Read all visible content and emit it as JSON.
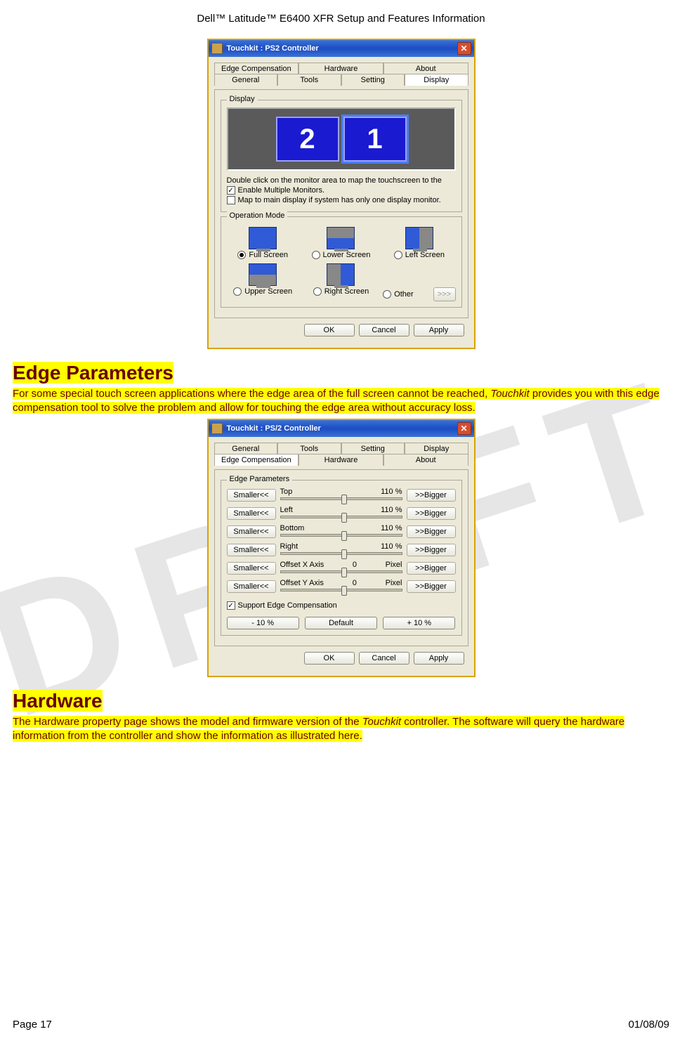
{
  "doc": {
    "header": "Dell™ Latitude™ E6400 XFR Setup and Features Information",
    "watermark": "DRAFT",
    "page_label": "Page 17",
    "date": "01/08/09"
  },
  "dialog1": {
    "title": "Touchkit : PS2 Controller",
    "tabs_row1": [
      "Edge Compensation",
      "Hardware",
      "About"
    ],
    "tabs_row2": [
      "General",
      "Tools",
      "Setting",
      "Display"
    ],
    "active_tab": "Display",
    "group_display": "Display",
    "monitors": [
      "2",
      "1"
    ],
    "hint": "Double click on the monitor area to map the touchscreen to the",
    "cb_multi": "Enable Multiple Monitors.",
    "cb_main": "Map to main display if system has only one display monitor.",
    "group_op": "Operation Mode",
    "ops": [
      {
        "label": "Full Screen",
        "checked": true,
        "variant": ""
      },
      {
        "label": "Lower Screen",
        "checked": false,
        "variant": "lower"
      },
      {
        "label": "Left Screen",
        "checked": false,
        "variant": "left"
      },
      {
        "label": "Upper Screen",
        "checked": false,
        "variant": "upper"
      },
      {
        "label": "Right Screen",
        "checked": false,
        "variant": "right"
      },
      {
        "label": "Other",
        "checked": false,
        "variant": "none"
      }
    ],
    "chev": ">>>",
    "buttons": [
      "OK",
      "Cancel",
      "Apply"
    ]
  },
  "section_edge": {
    "heading": "Edge Parameters",
    "para_a": "For some special touch screen applications where the edge area of the full screen cannot be reached, ",
    "para_b": "Touchkit",
    "para_c": " provides you with this edge compensation tool to solve the problem and allow for touching the edge area without accuracy loss."
  },
  "dialog2": {
    "title": "Touchkit : PS/2 Controller",
    "tabs_row1": [
      "General",
      "Tools",
      "Setting",
      "Display"
    ],
    "tabs_row2": [
      "Edge Compensation",
      "Hardware",
      "About"
    ],
    "active_tab": "Edge Compensation",
    "group": "Edge Parameters",
    "smaller": "Smaller<<",
    "bigger": ">>Bigger",
    "rows": [
      {
        "label": "Top",
        "value": "110 %",
        "unit": "",
        "thumb": 50
      },
      {
        "label": "Left",
        "value": "110 %",
        "unit": "",
        "thumb": 50
      },
      {
        "label": "Bottom",
        "value": "110 %",
        "unit": "",
        "thumb": 50
      },
      {
        "label": "Right",
        "value": "110 %",
        "unit": "",
        "thumb": 50
      },
      {
        "label": "Offset X Axis",
        "value": "0",
        "unit": "Pixel",
        "thumb": 50
      },
      {
        "label": "Offset Y Axis",
        "value": "0",
        "unit": "Pixel",
        "thumb": 50
      }
    ],
    "cb_support": "Support Edge Compensation",
    "adjust": [
      "- 10 %",
      "Default",
      "+ 10 %"
    ],
    "buttons": [
      "OK",
      "Cancel",
      "Apply"
    ]
  },
  "section_hw": {
    "heading": "Hardware",
    "para_a": "The Hardware property page shows the model and firmware version of the ",
    "para_b": "Touchkit",
    "para_c": " controller. The software will query the hardware information from the controller and show the information as illustrated here."
  }
}
